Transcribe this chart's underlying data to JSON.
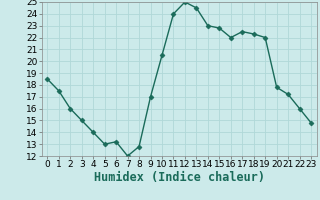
{
  "x": [
    0,
    1,
    2,
    3,
    4,
    5,
    6,
    7,
    8,
    9,
    10,
    11,
    12,
    13,
    14,
    15,
    16,
    17,
    18,
    19,
    20,
    21,
    22,
    23
  ],
  "y": [
    18.5,
    17.5,
    16.0,
    15.0,
    14.0,
    13.0,
    13.2,
    12.0,
    12.8,
    17.0,
    20.5,
    24.0,
    25.0,
    24.5,
    23.0,
    22.8,
    22.0,
    22.5,
    22.3,
    22.0,
    17.8,
    17.2,
    16.0,
    14.8
  ],
  "xlabel": "Humidex (Indice chaleur)",
  "ylim": [
    12,
    25
  ],
  "xlim": [
    -0.5,
    23.5
  ],
  "yticks": [
    12,
    13,
    14,
    15,
    16,
    17,
    18,
    19,
    20,
    21,
    22,
    23,
    24,
    25
  ],
  "xticks": [
    0,
    1,
    2,
    3,
    4,
    5,
    6,
    7,
    8,
    9,
    10,
    11,
    12,
    13,
    14,
    15,
    16,
    17,
    18,
    19,
    20,
    21,
    22,
    23
  ],
  "xtick_labels": [
    "0",
    "1",
    "2",
    "3",
    "4",
    "5",
    "6",
    "7",
    "8",
    "9",
    "10",
    "11",
    "12",
    "13",
    "14",
    "15",
    "16",
    "17",
    "18",
    "19",
    "20",
    "21",
    "22",
    "23"
  ],
  "line_color": "#1a6b5a",
  "marker": "D",
  "marker_size": 2.5,
  "background_color": "#cceaea",
  "grid_color": "#b0d8d8",
  "tick_fontsize": 6.5,
  "xlabel_fontsize": 8.5
}
